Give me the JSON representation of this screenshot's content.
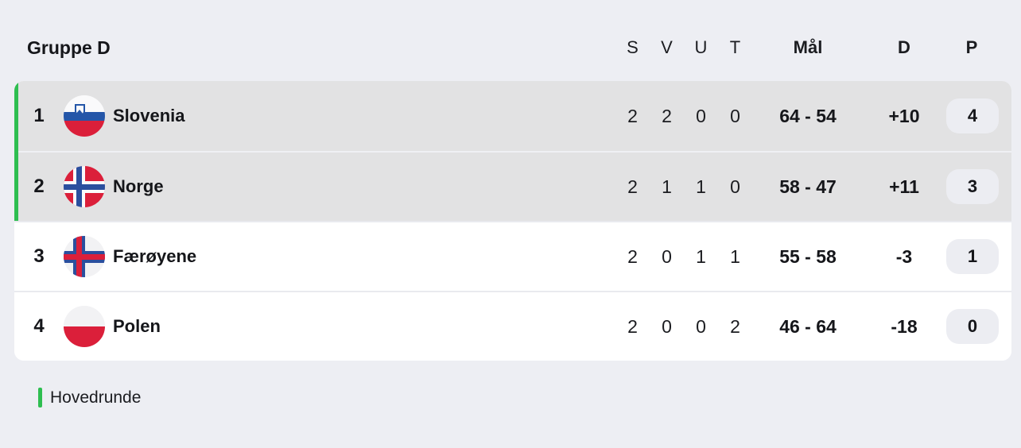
{
  "title": "Gruppe D",
  "columns": {
    "played": "S",
    "won": "V",
    "drawn": "U",
    "lost": "T",
    "goals": "Mål",
    "diff": "D",
    "points": "P"
  },
  "standings": {
    "rows": [
      {
        "rank": "1",
        "team": "Slovenia",
        "flag": "slovenia",
        "played": "2",
        "won": "2",
        "drawn": "0",
        "lost": "0",
        "goals": "64 - 54",
        "diff": "+10",
        "points": "4",
        "qualified": true
      },
      {
        "rank": "2",
        "team": "Norge",
        "flag": "norway",
        "played": "2",
        "won": "1",
        "drawn": "1",
        "lost": "0",
        "goals": "58 - 47",
        "diff": "+11",
        "points": "3",
        "qualified": true
      },
      {
        "rank": "3",
        "team": "Færøyene",
        "flag": "faroe-islands",
        "played": "2",
        "won": "0",
        "drawn": "1",
        "lost": "1",
        "goals": "55 - 58",
        "diff": "-3",
        "points": "1",
        "qualified": false
      },
      {
        "rank": "4",
        "team": "Polen",
        "flag": "poland",
        "played": "2",
        "won": "0",
        "drawn": "0",
        "lost": "2",
        "goals": "46 - 64",
        "diff": "-18",
        "points": "0",
        "qualified": false
      }
    ]
  },
  "legend": {
    "label": "Hovedrunde"
  },
  "colors": {
    "accent_green": "#2EBE50",
    "page_bg": "#EDEEF3",
    "row_highlight_bg": "#E2E2E3",
    "row_bg": "#FFFFFF",
    "pill_bg": "#ECEDF2",
    "text": "#15161A"
  }
}
